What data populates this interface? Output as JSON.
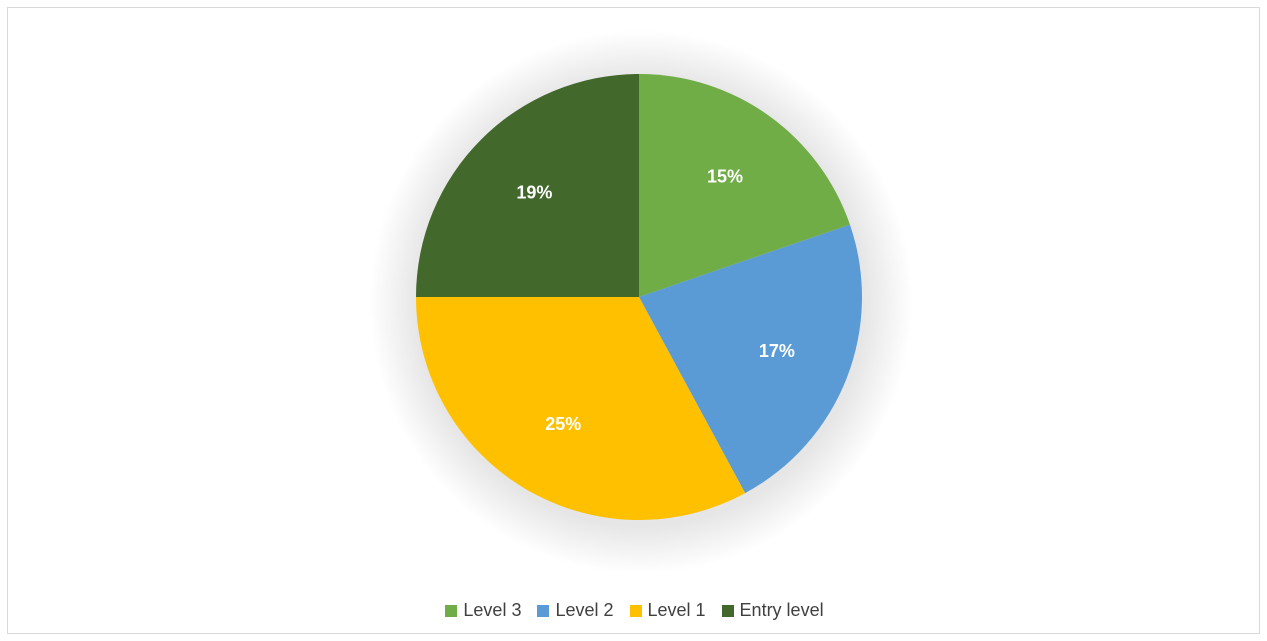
{
  "chart_data": {
    "type": "pie",
    "categories": [
      "Level 3",
      "Level 2",
      "Level 1",
      "Entry level"
    ],
    "values": [
      15,
      17,
      25,
      19
    ],
    "labels": [
      "15%",
      "17%",
      "25%",
      "19%"
    ],
    "colors": [
      "#70ad47",
      "#5b9bd5",
      "#ffc000",
      "#43682b"
    ],
    "legend_position": "bottom"
  }
}
